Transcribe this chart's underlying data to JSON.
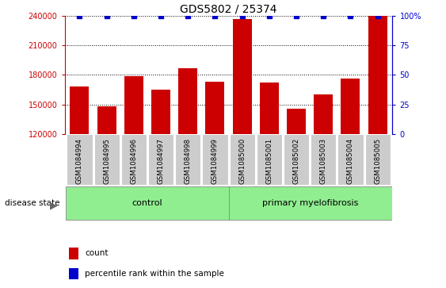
{
  "title": "GDS5802 / 25374",
  "categories": [
    "GSM1084994",
    "GSM1084995",
    "GSM1084996",
    "GSM1084997",
    "GSM1084998",
    "GSM1084999",
    "GSM1085000",
    "GSM1085001",
    "GSM1085002",
    "GSM1085003",
    "GSM1085004",
    "GSM1085005"
  ],
  "bar_values": [
    168000,
    148000,
    179000,
    165000,
    187000,
    173000,
    237000,
    172000,
    146000,
    160000,
    176000,
    240000
  ],
  "percentile_values": [
    100,
    100,
    100,
    100,
    100,
    100,
    100,
    100,
    100,
    100,
    100,
    100
  ],
  "bar_color": "#cc0000",
  "percentile_color": "#0000cc",
  "ylim_left": [
    120000,
    240000
  ],
  "ylim_right": [
    0,
    100
  ],
  "yticks_left": [
    120000,
    150000,
    180000,
    210000,
    240000
  ],
  "yticks_right": [
    0,
    25,
    50,
    75,
    100
  ],
  "control_label": "control",
  "myelofibrosis_label": "primary myelofibrosis",
  "disease_state_label": "disease state",
  "legend_count_label": "count",
  "legend_percentile_label": "percentile rank within the sample",
  "control_color": "#90ee90",
  "myelofibrosis_color": "#90ee90",
  "tick_bg_color": "#cccccc",
  "title_fontsize": 10,
  "tick_fontsize": 7,
  "label_fontsize": 8,
  "bar_width": 0.7
}
